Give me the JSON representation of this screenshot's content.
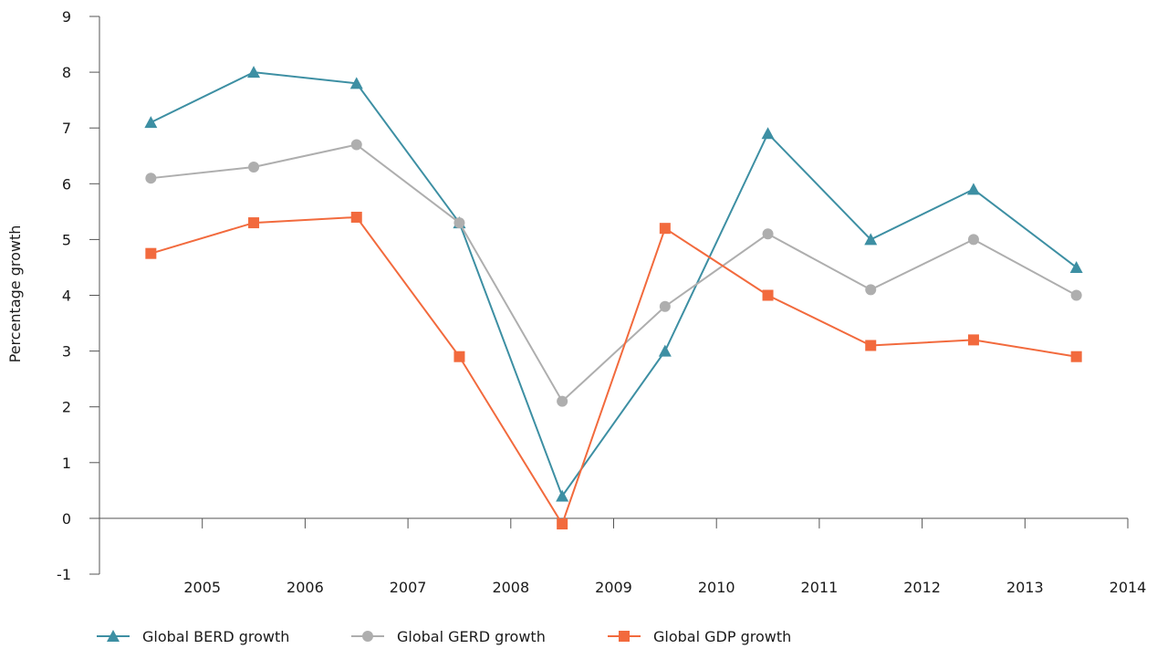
{
  "chart_data": {
    "type": "line",
    "title": "",
    "xlabel": "",
    "ylabel": "Percentage growth",
    "x_tick_labels": [
      "2005",
      "2006",
      "2007",
      "2008",
      "2009",
      "2010",
      "2011",
      "2012",
      "2013",
      "2014"
    ],
    "ylim": [
      -1,
      9
    ],
    "y_ticks": [
      -1,
      0,
      1,
      2,
      3,
      4,
      5,
      6,
      7,
      8,
      9
    ],
    "grid": false,
    "legend_position": "bottom-left",
    "series": [
      {
        "name": "Global BERD growth",
        "color": "#3d8fa3",
        "marker": "triangle",
        "values": [
          7.1,
          8.0,
          7.8,
          5.3,
          0.4,
          3.0,
          6.9,
          5.0,
          5.9,
          4.5
        ]
      },
      {
        "name": "Global GERD growth",
        "color": "#aeaeae",
        "marker": "circle",
        "values": [
          6.1,
          6.3,
          6.7,
          5.3,
          2.1,
          3.8,
          5.1,
          4.1,
          5.0,
          4.0
        ]
      },
      {
        "name": "Global GDP growth",
        "color": "#f26a3d",
        "marker": "square",
        "values": [
          4.75,
          5.3,
          5.4,
          2.9,
          -0.1,
          5.2,
          4.0,
          3.1,
          3.2,
          2.9
        ]
      }
    ]
  }
}
